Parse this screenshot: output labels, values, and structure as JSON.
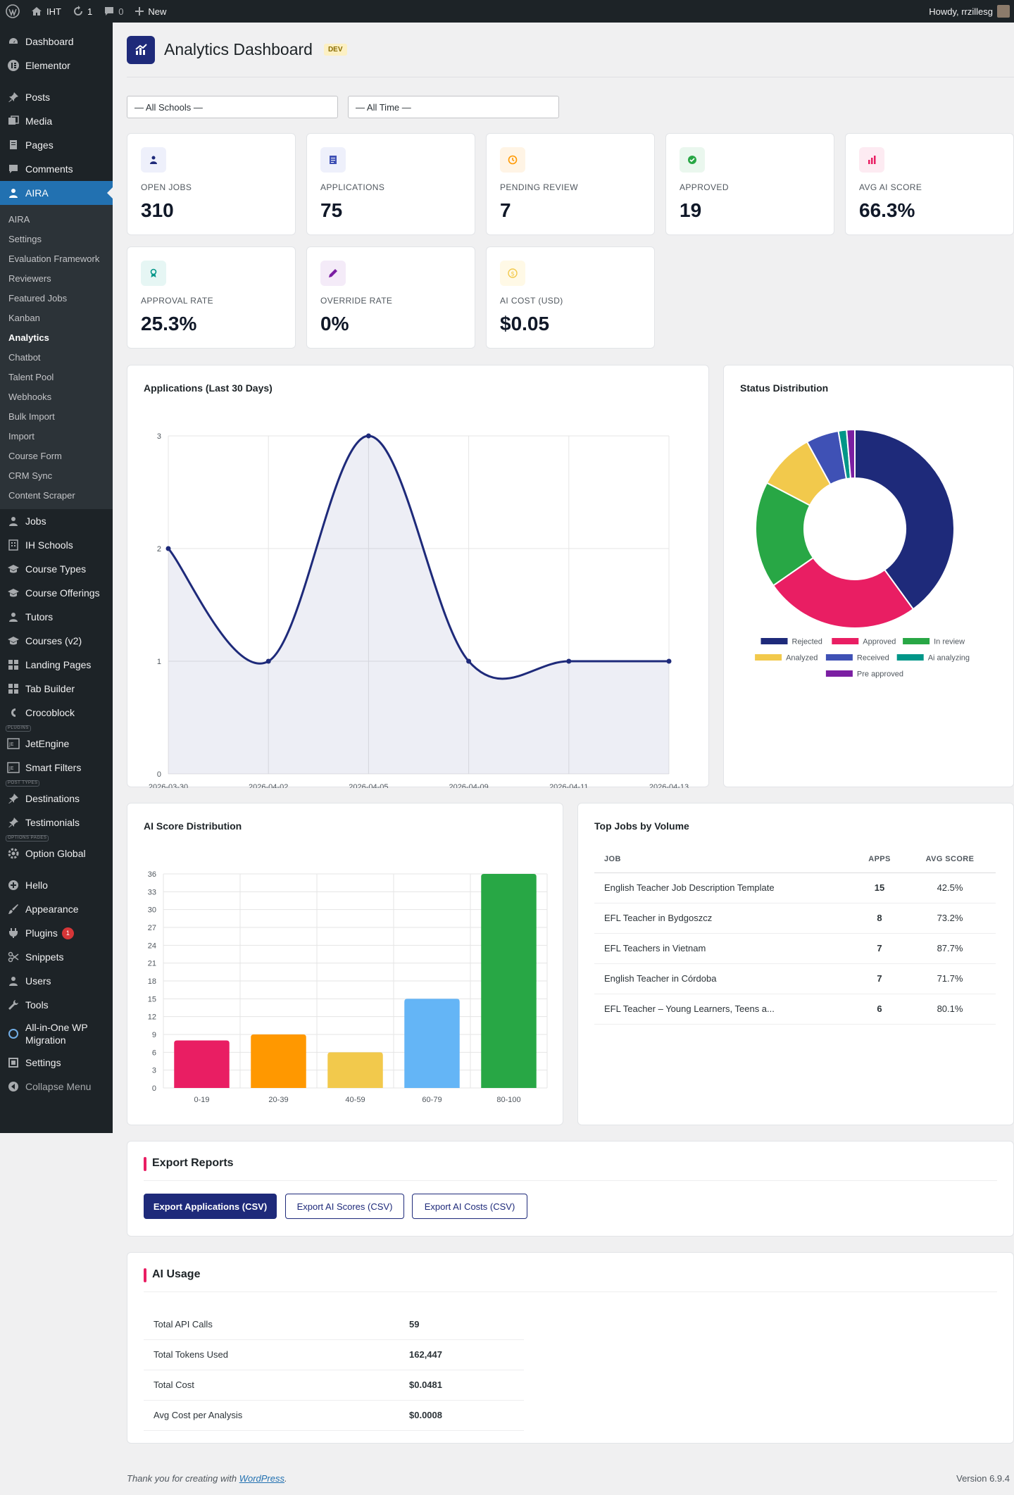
{
  "adminbar": {
    "site": "IHT",
    "updates": "1",
    "comments": "0",
    "new_label": "New",
    "howdy": "Howdy, rrzillesg"
  },
  "sidebar": {
    "top": [
      {
        "label": "Dashboard",
        "icon": "dashboard-icon"
      },
      {
        "label": "Elementor",
        "icon": "elementor-icon"
      }
    ],
    "main": [
      {
        "label": "Posts",
        "icon": "pin-icon"
      },
      {
        "label": "Media",
        "icon": "media-icon"
      },
      {
        "label": "Pages",
        "icon": "pages-icon"
      },
      {
        "label": "Comments",
        "icon": "comment-icon"
      }
    ],
    "aira_label": "AIRA",
    "aira_sub": [
      "AIRA",
      "Settings",
      "Evaluation Framework",
      "Reviewers",
      "Featured Jobs",
      "Kanban",
      "Analytics",
      "Chatbot",
      "Talent Pool",
      "Webhooks",
      "Bulk Import",
      "Import",
      "Course Form",
      "CRM Sync",
      "Content Scraper"
    ],
    "cpt": [
      {
        "label": "Jobs",
        "icon": "user-icon"
      },
      {
        "label": "IH Schools",
        "icon": "building-icon"
      },
      {
        "label": "Course Types",
        "icon": "graduation-icon"
      },
      {
        "label": "Course Offerings",
        "icon": "graduation-icon"
      },
      {
        "label": "Tutors",
        "icon": "user-icon"
      },
      {
        "label": "Courses (v2)",
        "icon": "graduation-icon"
      },
      {
        "label": "Landing Pages",
        "icon": "grid-icon"
      },
      {
        "label": "Tab Builder",
        "icon": "grid-icon"
      },
      {
        "label": "Crocoblock",
        "icon": "crocoblock-icon"
      }
    ],
    "plugins_tag": "PLUGINS",
    "plugins": [
      {
        "label": "JetEngine",
        "icon": "jet-icon"
      },
      {
        "label": "Smart Filters",
        "icon": "jet-icon"
      }
    ],
    "posttypes_tag": "POST TYPES",
    "posttypes": [
      {
        "label": "Destinations",
        "icon": "pin-icon"
      },
      {
        "label": "Testimonials",
        "icon": "pin-icon"
      }
    ],
    "options_tag": "OPTIONS PAGES",
    "option_global": "Option Global",
    "bottom": [
      {
        "label": "Hello",
        "icon": "plus-circle-icon"
      },
      {
        "label": "Appearance",
        "icon": "brush-icon"
      },
      {
        "label": "Plugins",
        "icon": "plug-icon"
      },
      {
        "label": "Snippets",
        "icon": "scissors-icon"
      },
      {
        "label": "Users",
        "icon": "user-icon"
      },
      {
        "label": "Tools",
        "icon": "wrench-icon"
      }
    ],
    "plugins_badge": "1",
    "migration_label_1": "All-in-One WP",
    "migration_label_2": "Migration",
    "settings_label": "Settings",
    "collapse_label": "Collapse Menu"
  },
  "header": {
    "title": "Analytics Dashboard",
    "badge": "DEV"
  },
  "filters": {
    "school": "— All Schools —",
    "time": "— All Time —"
  },
  "stats": [
    {
      "label": "OPEN JOBS",
      "value": "310",
      "icon": "person-icon",
      "color": "#1e2a7a",
      "bg": "#eef0fb"
    },
    {
      "label": "APPLICATIONS",
      "value": "75",
      "icon": "document-icon",
      "color": "#3f51b5",
      "bg": "#eef0fb"
    },
    {
      "label": "PENDING REVIEW",
      "value": "7",
      "icon": "clock-icon",
      "color": "#ff9800",
      "bg": "#fff4e5"
    },
    {
      "label": "APPROVED",
      "value": "19",
      "icon": "check-circle-icon",
      "color": "#28a745",
      "bg": "#eaf7ee"
    },
    {
      "label": "AVG AI SCORE",
      "value": "66.3%",
      "icon": "bar-chart-icon",
      "color": "#e91e63",
      "bg": "#fdebf2"
    },
    {
      "label": "APPROVAL RATE",
      "value": "25.3%",
      "icon": "award-icon",
      "color": "#009688",
      "bg": "#e6f6f4"
    },
    {
      "label": "OVERRIDE RATE",
      "value": "0%",
      "icon": "pencil-icon",
      "color": "#7b1fa2",
      "bg": "#f4ebf8"
    },
    {
      "label": "AI COST (USD)",
      "value": "$0.05",
      "icon": "dollar-icon",
      "color": "#f2c94c",
      "bg": "#fff9e6"
    }
  ],
  "line_chart": {
    "title": "Applications (Last 30 Days)",
    "chart_data": {
      "type": "line",
      "x": [
        "2026-03-30",
        "2026-04-02",
        "2026-04-05",
        "2026-04-09",
        "2026-04-11",
        "2026-04-13"
      ],
      "values": [
        2,
        1,
        3,
        1,
        1,
        1
      ],
      "ylim": [
        0,
        3
      ],
      "yticks": [
        0,
        1,
        2,
        3
      ],
      "color": "#1e2a7a",
      "grid": true
    }
  },
  "pie_chart": {
    "title": "Status Distribution",
    "chart_data": {
      "type": "pie",
      "labels": [
        "Rejected",
        "Approved",
        "In review",
        "Analyzed",
        "Received",
        "Ai analyzing",
        "Pre approved"
      ],
      "values": [
        30,
        19,
        13,
        7,
        4,
        1,
        1
      ],
      "colors": [
        "#1e2a7a",
        "#e91e63",
        "#28a745",
        "#f2c94c",
        "#3f51b5",
        "#009688",
        "#7b1fa2"
      ],
      "legend": "bottom"
    }
  },
  "bar_chart": {
    "title": "AI Score Distribution",
    "chart_data": {
      "type": "bar",
      "categories": [
        "0-19",
        "20-39",
        "40-59",
        "60-79",
        "80-100"
      ],
      "values": [
        8,
        9,
        6,
        15,
        36
      ],
      "colors": [
        "#e91e63",
        "#ff9800",
        "#f2c94c",
        "#64b5f6",
        "#28a745"
      ],
      "ylim": [
        0,
        36
      ],
      "yticks": [
        0,
        3,
        6,
        9,
        12,
        15,
        18,
        21,
        24,
        27,
        30,
        33,
        36
      ]
    }
  },
  "top_jobs": {
    "title": "Top Jobs by Volume",
    "headers": [
      "JOB",
      "APPS",
      "AVG SCORE"
    ],
    "rows": [
      [
        "English Teacher Job Description Template",
        "15",
        "42.5%"
      ],
      [
        "EFL Teacher in Bydgoszcz",
        "8",
        "73.2%"
      ],
      [
        "EFL Teachers in Vietnam",
        "7",
        "87.7%"
      ],
      [
        "English Teacher in Córdoba",
        "7",
        "71.7%"
      ],
      [
        "EFL Teacher – Young Learners, Teens a...",
        "6",
        "80.1%"
      ]
    ]
  },
  "export": {
    "title": "Export Reports",
    "buttons": [
      "Export Applications (CSV)",
      "Export AI Scores (CSV)",
      "Export AI Costs (CSV)"
    ]
  },
  "ai_usage": {
    "title": "AI Usage",
    "rows": [
      [
        "Total API Calls",
        "59"
      ],
      [
        "Total Tokens Used",
        "162,447"
      ],
      [
        "Total Cost",
        "$0.0481"
      ],
      [
        "Avg Cost per Analysis",
        "$0.0008"
      ]
    ]
  },
  "footer": {
    "thanks_prefix": "Thank you for creating with ",
    "link": "WordPress",
    "suffix": ".",
    "version": "Version 6.9.4"
  }
}
